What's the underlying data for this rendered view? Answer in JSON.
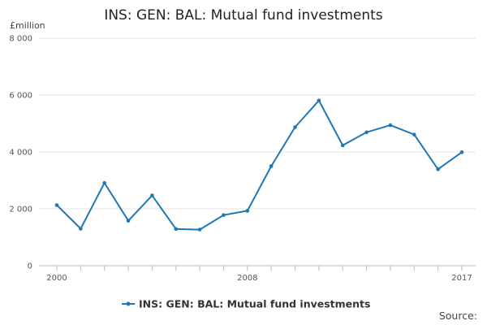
{
  "chart_data": {
    "type": "line",
    "title": "INS: GEN: BAL: Mutual fund investments",
    "unit_label": "£million",
    "ylim": [
      0,
      8000
    ],
    "y_ticks": [
      0,
      2000,
      4000,
      6000,
      8000
    ],
    "y_tick_labels": [
      "0",
      "2 000",
      "4 000",
      "6 000",
      "8 000"
    ],
    "x_tick_labels": [
      {
        "x": 2000,
        "label": "2000"
      },
      {
        "x": 2008,
        "label": "2008"
      },
      {
        "x": 2017,
        "label": "2017"
      }
    ],
    "x_range": [
      2000,
      2017
    ],
    "grid": true,
    "legend_position": "bottom",
    "source_label": "Source:",
    "series": [
      {
        "name": "INS: GEN: BAL: Mutual fund investments",
        "color": "#1f77b4",
        "x": [
          2000,
          2001,
          2002,
          2003,
          2004,
          2005,
          2006,
          2007,
          2008,
          2009,
          2010,
          2011,
          2012,
          2013,
          2014,
          2015,
          2016,
          2017
        ],
        "values": [
          2130,
          1300,
          2910,
          1580,
          2470,
          1290,
          1270,
          1780,
          1930,
          3500,
          4870,
          5810,
          4230,
          4690,
          4940,
          4610,
          3390,
          3990
        ]
      }
    ]
  }
}
